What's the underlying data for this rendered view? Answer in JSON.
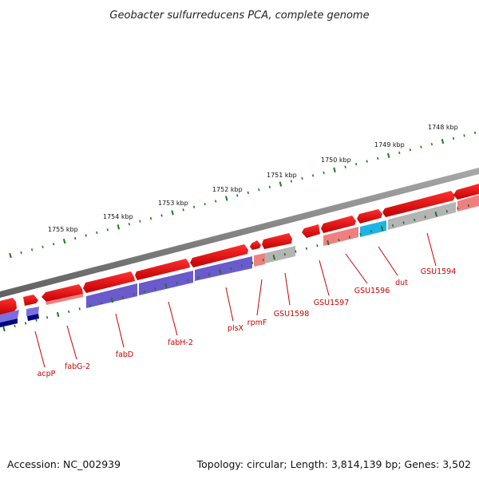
{
  "title": "Geobacter sulfurreducens PCA, complete genome",
  "footer": {
    "accession": "Accession: NC_002939",
    "summary": "Topology: circular; Length: 3,814,139 bp; Genes: 3,502"
  },
  "scale_labels": [
    "1755 kbp",
    "1754 kbp",
    "1753 kbp",
    "1752 kbp",
    "1751 kbp",
    "1750 kbp",
    "1749 kbp",
    "1748 kbp"
  ],
  "genes": [
    {
      "name": "acpP"
    },
    {
      "name": "fabG-2"
    },
    {
      "name": "fabD"
    },
    {
      "name": "fabH-2"
    },
    {
      "name": "plsX"
    },
    {
      "name": "rpmF"
    },
    {
      "name": "GSU1598"
    },
    {
      "name": "GSU1597"
    },
    {
      "name": "GSU1596"
    },
    {
      "name": "dut"
    },
    {
      "name": "GSU1594"
    }
  ],
  "colors": {
    "cds": "#e01010",
    "cds_light": "#f08080",
    "cog_purple": "#6a5acd",
    "cog_navy": "#000080",
    "cog_cyan": "#1eb4e6",
    "cog_gray": "#b4b4b4",
    "backbone": "#808080",
    "ticks": "#1a7a1a",
    "label": "#cc0000"
  }
}
